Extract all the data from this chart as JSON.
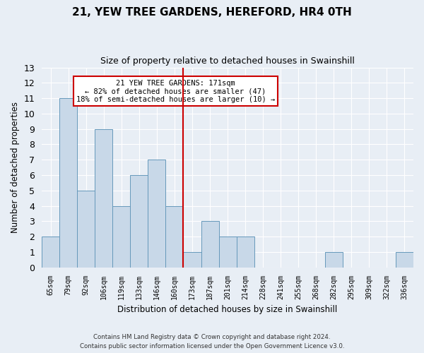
{
  "title": "21, YEW TREE GARDENS, HEREFORD, HR4 0TH",
  "subtitle": "Size of property relative to detached houses in Swainshill",
  "xlabel": "Distribution of detached houses by size in Swainshill",
  "ylabel": "Number of detached properties",
  "categories": [
    "65sqm",
    "79sqm",
    "92sqm",
    "106sqm",
    "119sqm",
    "133sqm",
    "146sqm",
    "160sqm",
    "173sqm",
    "187sqm",
    "201sqm",
    "214sqm",
    "228sqm",
    "241sqm",
    "255sqm",
    "268sqm",
    "282sqm",
    "295sqm",
    "309sqm",
    "322sqm",
    "336sqm"
  ],
  "values": [
    2,
    11,
    5,
    9,
    4,
    6,
    7,
    4,
    1,
    3,
    2,
    2,
    0,
    0,
    0,
    0,
    1,
    0,
    0,
    0,
    1
  ],
  "bar_color": "#c8d8e8",
  "bar_edge_color": "#6699bb",
  "highlight_index": 8,
  "highlight_color": "#cc0000",
  "ylim": [
    0,
    13
  ],
  "yticks": [
    0,
    1,
    2,
    3,
    4,
    5,
    6,
    7,
    8,
    9,
    10,
    11,
    12,
    13
  ],
  "annotation_title": "21 YEW TREE GARDENS: 171sqm",
  "annotation_line1": "← 82% of detached houses are smaller (47)",
  "annotation_line2": "18% of semi-detached houses are larger (10) →",
  "annotation_box_color": "#ffffff",
  "annotation_box_edge": "#cc0000",
  "footer_line1": "Contains HM Land Registry data © Crown copyright and database right 2024.",
  "footer_line2": "Contains public sector information licensed under the Open Government Licence v3.0.",
  "bg_color": "#e8eef5",
  "grid_color": "#ffffff"
}
